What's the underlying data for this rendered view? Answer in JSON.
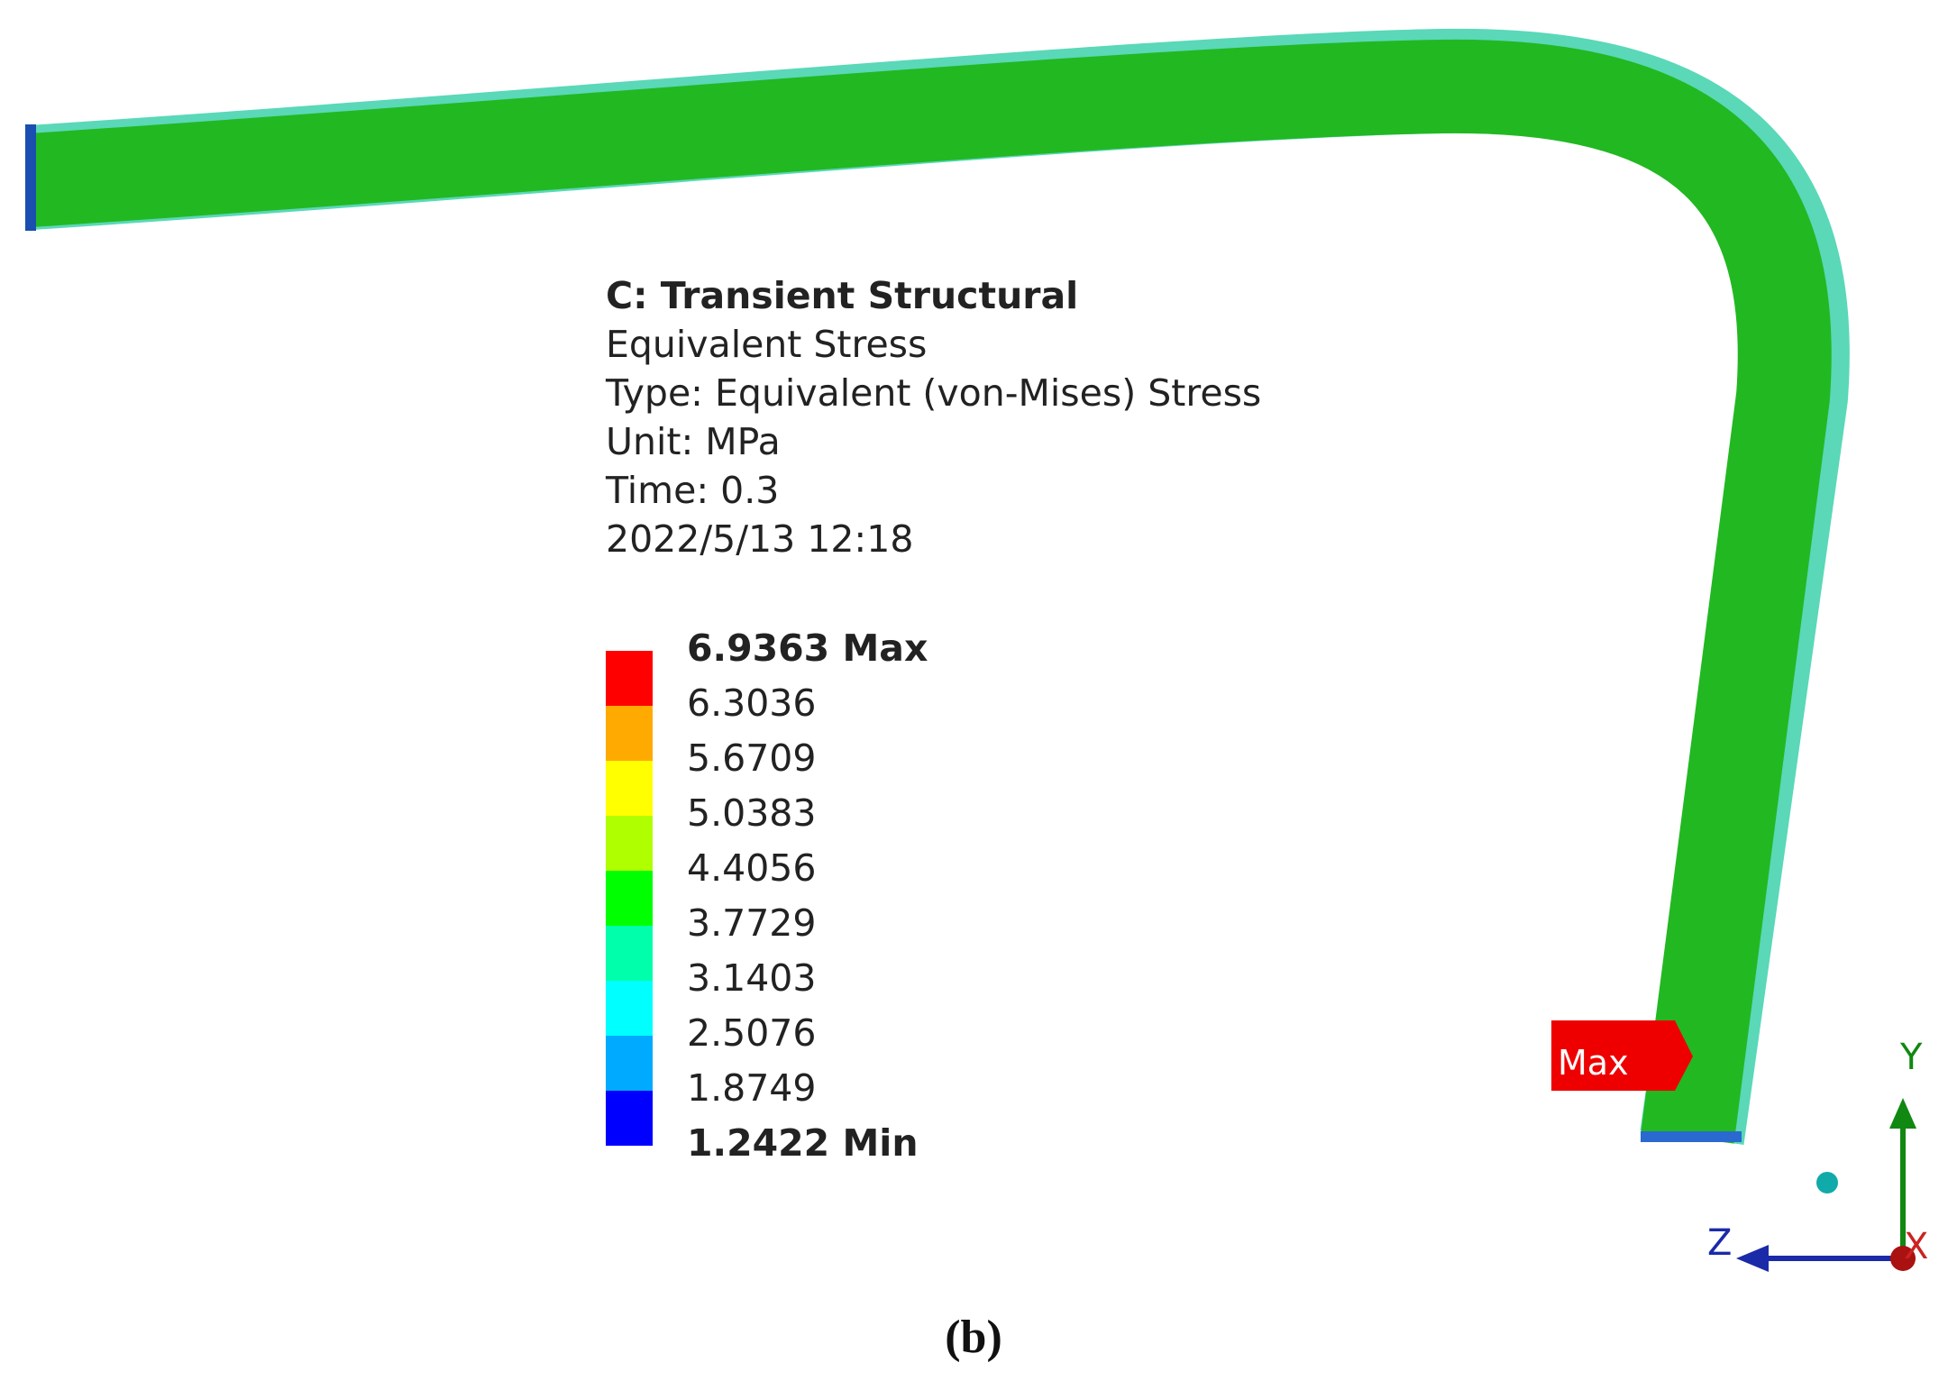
{
  "header": {
    "title": "C: Transient Structural",
    "lines": [
      "Equivalent Stress",
      "Type: Equivalent (von-Mises) Stress",
      "Unit: MPa",
      "Time: 0.3",
      "2022/5/13 12:18"
    ]
  },
  "legend": {
    "labels": [
      "6.9363 Max",
      "6.3036",
      "5.6709",
      "5.0383",
      "4.4056",
      "3.7729",
      "3.1403",
      "2.5076",
      "1.8749",
      "1.2422 Min"
    ],
    "colors": [
      "#ff0000",
      "#ffaa00",
      "#ffff00",
      "#b0ff00",
      "#00ff00",
      "#00ffaa",
      "#00ffff",
      "#00aaff",
      "#0000ff"
    ]
  },
  "probe": "Max",
  "triad": {
    "y": "Y",
    "z": "Z",
    "x": "X"
  },
  "caption": "(b)"
}
